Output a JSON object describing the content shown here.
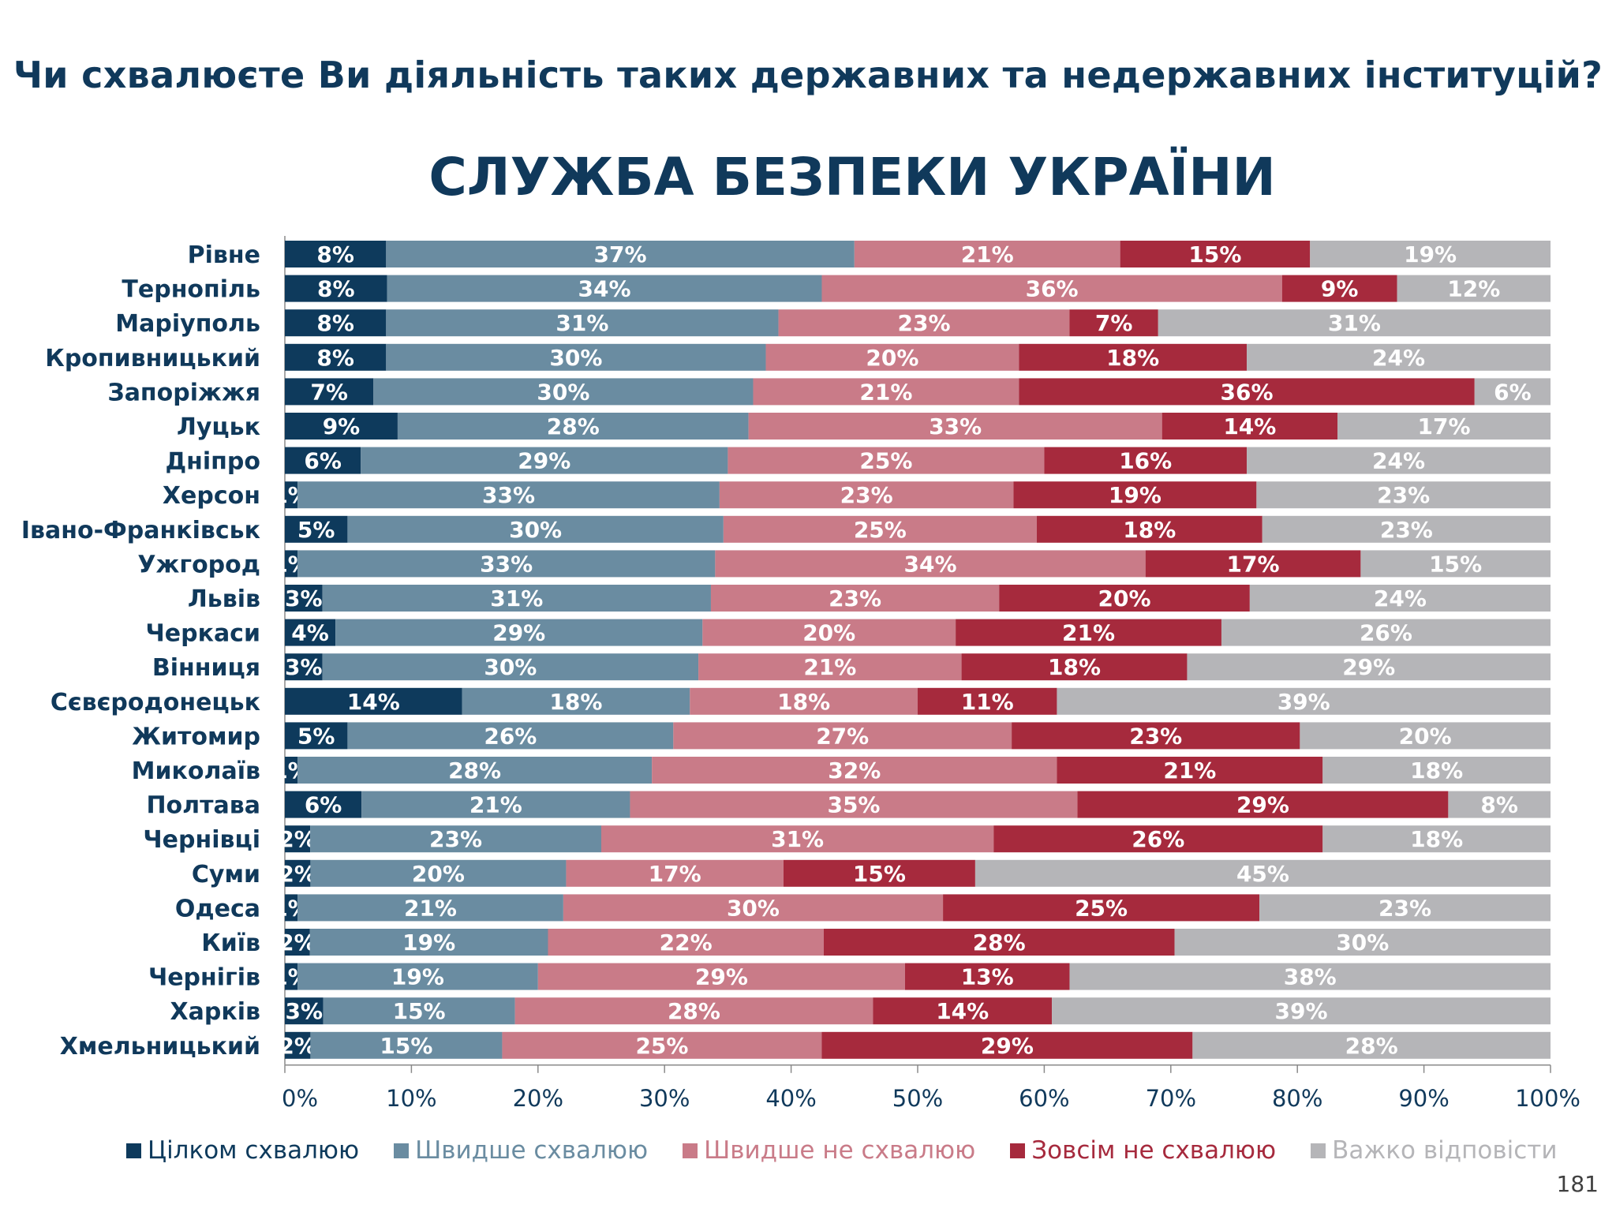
{
  "header": {
    "question": "Чи схвалюєте Ви діяльність таких державних та недержавних інституцій?",
    "subject": "СЛУЖБА БЕЗПЕКИ УКРАЇНИ"
  },
  "page_number": "181",
  "colors": {
    "text_dark_blue": "#10395b",
    "series": [
      "#0e3a5c",
      "#6a8ca1",
      "#c97b88",
      "#a62a3d",
      "#b5b5b8"
    ]
  },
  "chart_data": {
    "type": "bar",
    "orientation": "horizontal",
    "stacked": true,
    "categories": [
      "Рівне",
      "Тернопіль",
      "Маріуполь",
      "Кропивницький",
      "Запоріжжя",
      "Луцьк",
      "Дніпро",
      "Херсон",
      "Івано-Франківськ",
      "Ужгород",
      "Львів",
      "Черкаси",
      "Вінниця",
      "Сєвєродонецьк",
      "Житомир",
      "Миколаїв",
      "Полтава",
      "Чернівці",
      "Суми",
      "Одеса",
      "Київ",
      "Чернігів",
      "Харків",
      "Хмельницький"
    ],
    "series": [
      {
        "name": "Цілком схвалюю",
        "values": [
          8,
          8,
          8,
          8,
          7,
          9,
          6,
          1,
          5,
          1,
          3,
          4,
          3,
          14,
          5,
          1,
          6,
          2,
          2,
          1,
          2,
          1,
          3,
          2
        ]
      },
      {
        "name": "Швидше схвалюю",
        "values": [
          37,
          34,
          31,
          30,
          30,
          28,
          29,
          33,
          30,
          33,
          31,
          29,
          30,
          18,
          26,
          28,
          21,
          23,
          20,
          21,
          19,
          19,
          15,
          15
        ]
      },
      {
        "name": "Швидше не схвалюю",
        "values": [
          21,
          36,
          23,
          20,
          21,
          33,
          25,
          23,
          25,
          34,
          23,
          20,
          21,
          18,
          27,
          32,
          35,
          31,
          17,
          30,
          22,
          29,
          28,
          25
        ]
      },
      {
        "name": "Зовсім не схвалюю",
        "values": [
          15,
          9,
          7,
          18,
          36,
          14,
          16,
          19,
          18,
          17,
          20,
          21,
          18,
          11,
          23,
          21,
          29,
          26,
          15,
          25,
          28,
          13,
          14,
          29
        ]
      },
      {
        "name": "Важко відповісти",
        "values": [
          19,
          12,
          31,
          24,
          6,
          17,
          24,
          23,
          23,
          15,
          24,
          26,
          29,
          39,
          20,
          18,
          8,
          18,
          45,
          23,
          30,
          38,
          39,
          28
        ]
      }
    ],
    "xaxis": {
      "ticks": [
        0,
        10,
        20,
        30,
        40,
        50,
        60,
        70,
        80,
        90,
        100
      ],
      "tick_labels": [
        "0%",
        "10%",
        "20%",
        "30%",
        "40%",
        "50%",
        "60%",
        "70%",
        "80%",
        "90%",
        "100%"
      ],
      "range": [
        0,
        100
      ]
    },
    "data_label_suffix": "%",
    "legend_position": "bottom",
    "grid": false
  }
}
